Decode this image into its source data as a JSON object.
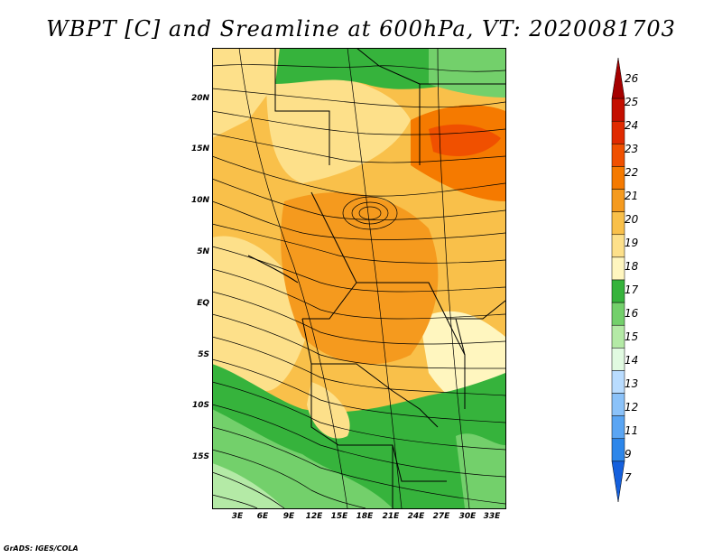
{
  "title": "WBPT [C] and Sreamline at 600hPa, VT: 2020081703",
  "credit": "GrADS: IGES/COLA",
  "lat_ticks": [
    "20N",
    "15N",
    "10N",
    "5N",
    "EQ",
    "5S",
    "10S",
    "15S"
  ],
  "lon_ticks": [
    "3E",
    "6E",
    "9E",
    "12E",
    "15E",
    "18E",
    "21E",
    "24E",
    "27E",
    "30E",
    "33E"
  ],
  "colorbar": {
    "labels": [
      "26",
      "25",
      "24",
      "23",
      "22",
      "21",
      "20",
      "19",
      "18",
      "17",
      "16",
      "15",
      "14",
      "13",
      "12",
      "11",
      "9",
      "7"
    ],
    "colors": [
      "#a50000",
      "#c40f00",
      "#e02a00",
      "#f05000",
      "#f57a00",
      "#f59a1e",
      "#f9c04a",
      "#fde08a",
      "#fff6bf",
      "#36b33c",
      "#73d06b",
      "#b4eaa6",
      "#e1fae1",
      "#b9dcff",
      "#8bc2f9",
      "#5aa5f3",
      "#2c86ea",
      "#1560dd"
    ]
  }
}
